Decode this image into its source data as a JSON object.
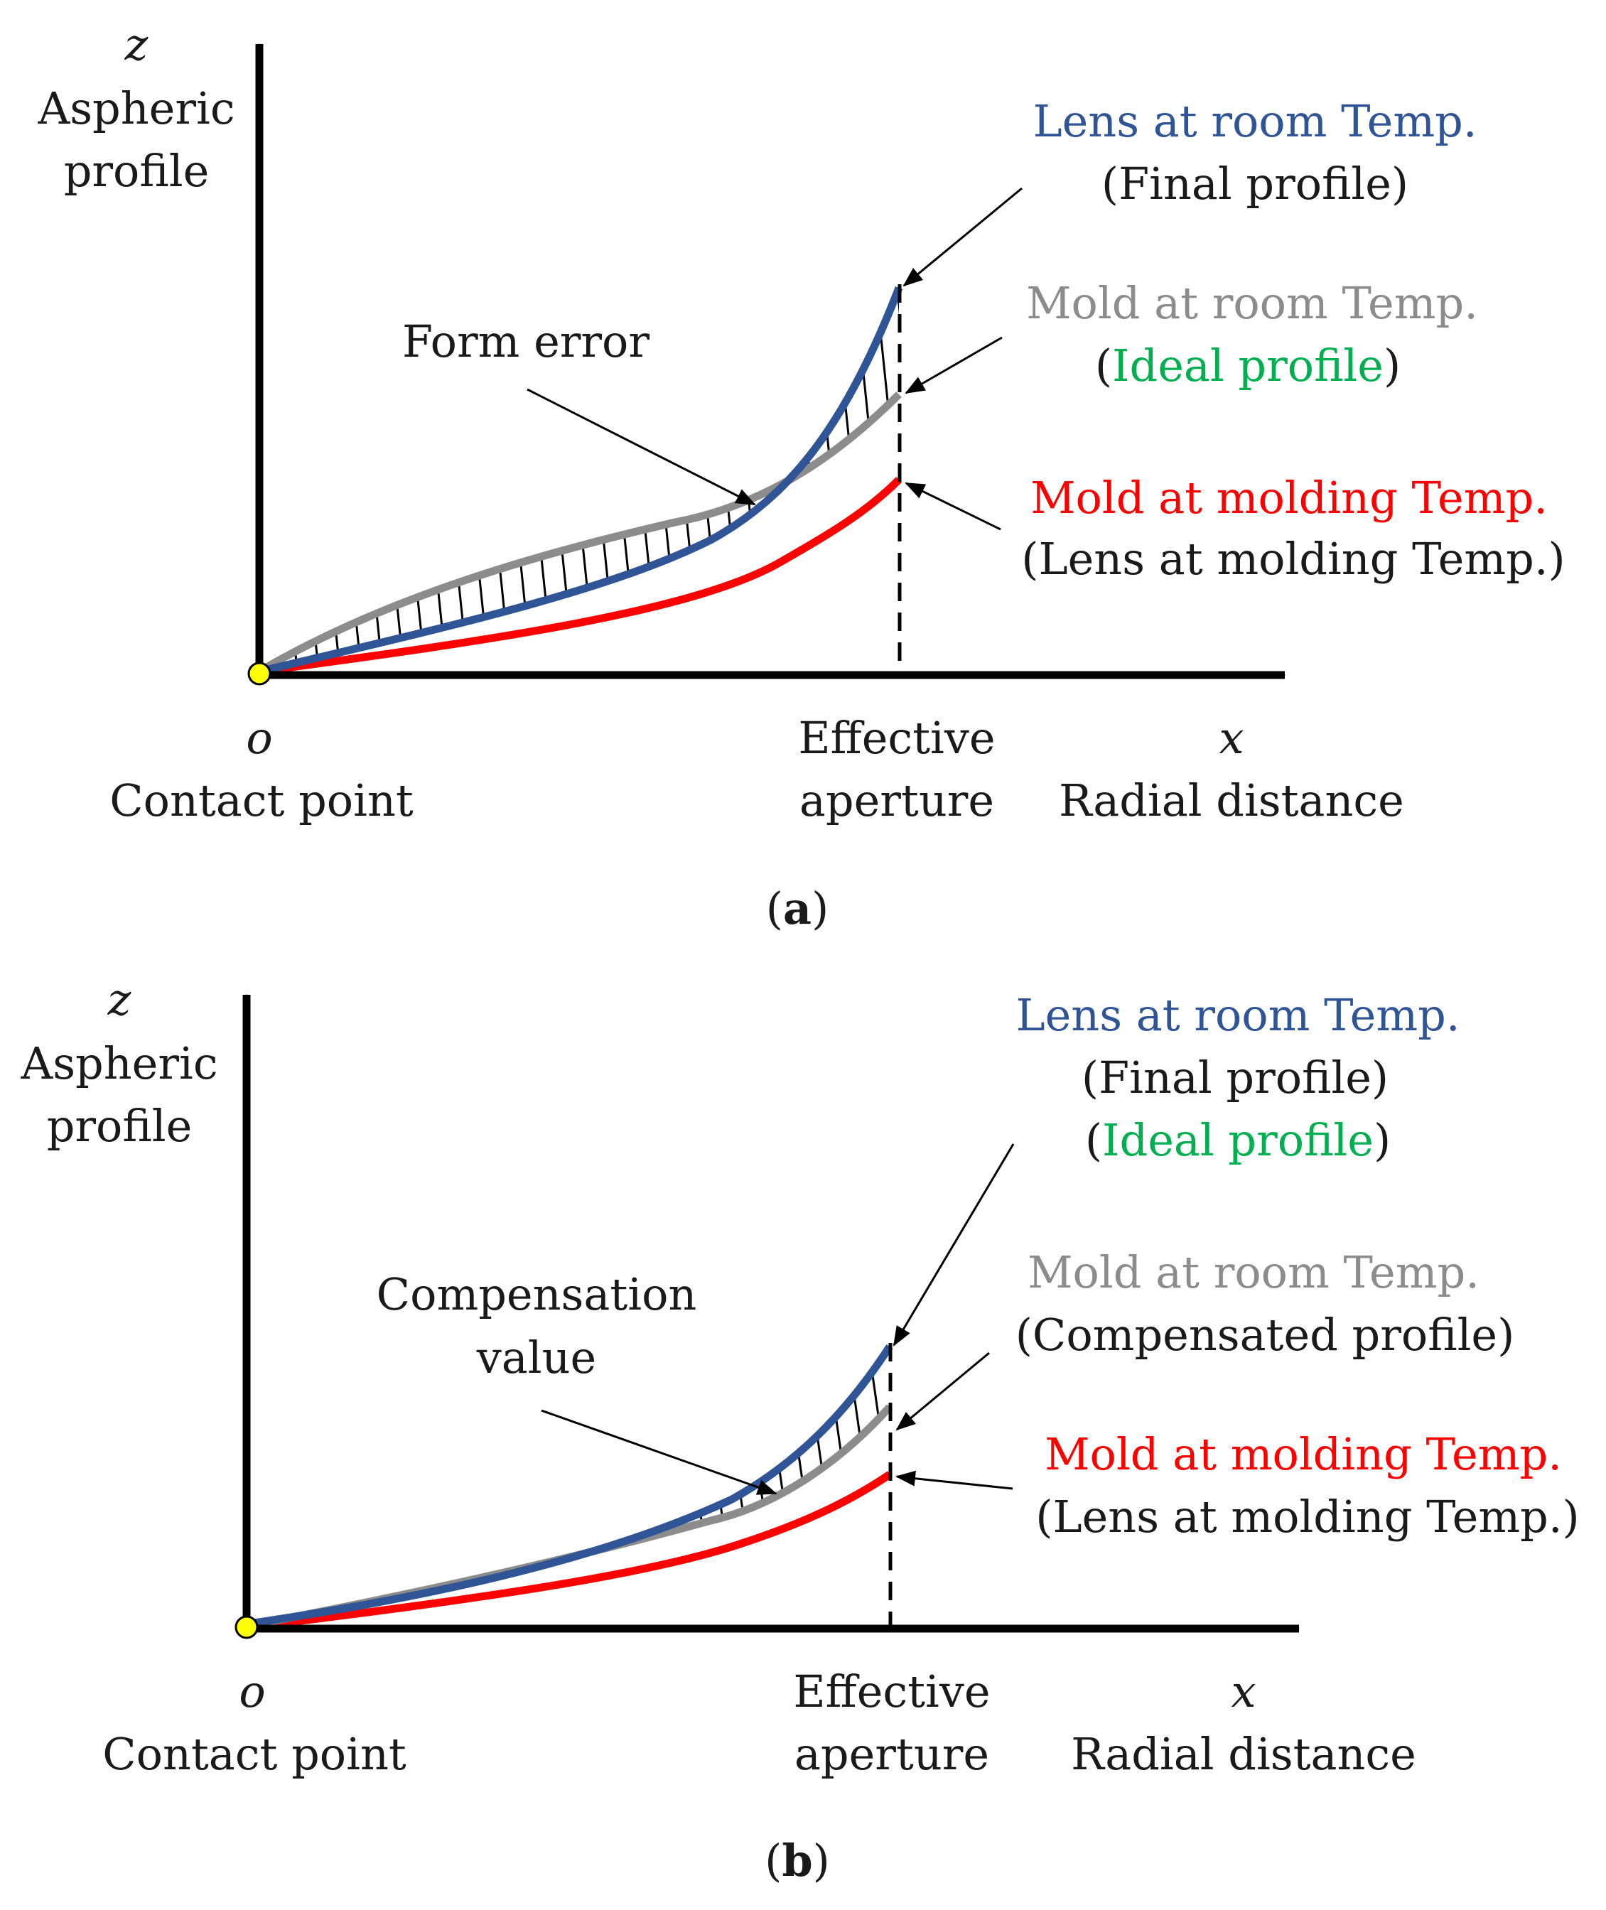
{
  "colors": {
    "lens_room": "#2f5597",
    "mold_room": "#8c8c8c",
    "mold_molding": "#ff0000",
    "ideal": "#00b050",
    "axis": "#000000",
    "origin_dot": "#ffff00",
    "text": "#1a1a1a"
  },
  "panel_a": {
    "z_symbol": "z",
    "y_title_1": "Aspheric",
    "y_title_2": "profile",
    "origin_symbol": "o",
    "origin_label": "Contact point",
    "aperture_label_1": "Effective",
    "aperture_label_2": "aperture",
    "x_symbol": "x",
    "x_title": "Radial distance",
    "hatch_label": "Form error",
    "legend_lens_room": "Lens at room Temp.",
    "legend_lens_room_note": "(Final profile)",
    "legend_mold_room": "Mold at room Temp.",
    "legend_mold_room_note_open": "(",
    "legend_mold_room_note": "Ideal profile",
    "legend_mold_room_note_close": ")",
    "legend_mold_molding": "Mold at molding Temp.",
    "legend_mold_molding_note": "(Lens at molding Temp.)",
    "caption_open": "(",
    "caption": "a",
    "caption_close": ")"
  },
  "panel_b": {
    "z_symbol": "z",
    "y_title_1": "Aspheric",
    "y_title_2": "profile",
    "origin_symbol": "o",
    "origin_label": "Contact point",
    "aperture_label_1": "Effective",
    "aperture_label_2": "aperture",
    "x_symbol": "x",
    "x_title": "Radial distance",
    "hatch_label_1": "Compensation",
    "hatch_label_2": "value",
    "legend_lens_room": "Lens at room Temp.",
    "legend_lens_room_note": "(Final profile)",
    "legend_lens_room_note2_open": "(",
    "legend_lens_room_note2": "Ideal profile",
    "legend_lens_room_note2_close": ")",
    "legend_mold_room": "Mold at room Temp.",
    "legend_mold_room_note": "(Compensated profile)",
    "legend_mold_molding": "Mold at molding Temp.",
    "legend_mold_molding_note": "(Lens at molding Temp.)",
    "caption_open": "(",
    "caption": "b",
    "caption_close": ")"
  }
}
